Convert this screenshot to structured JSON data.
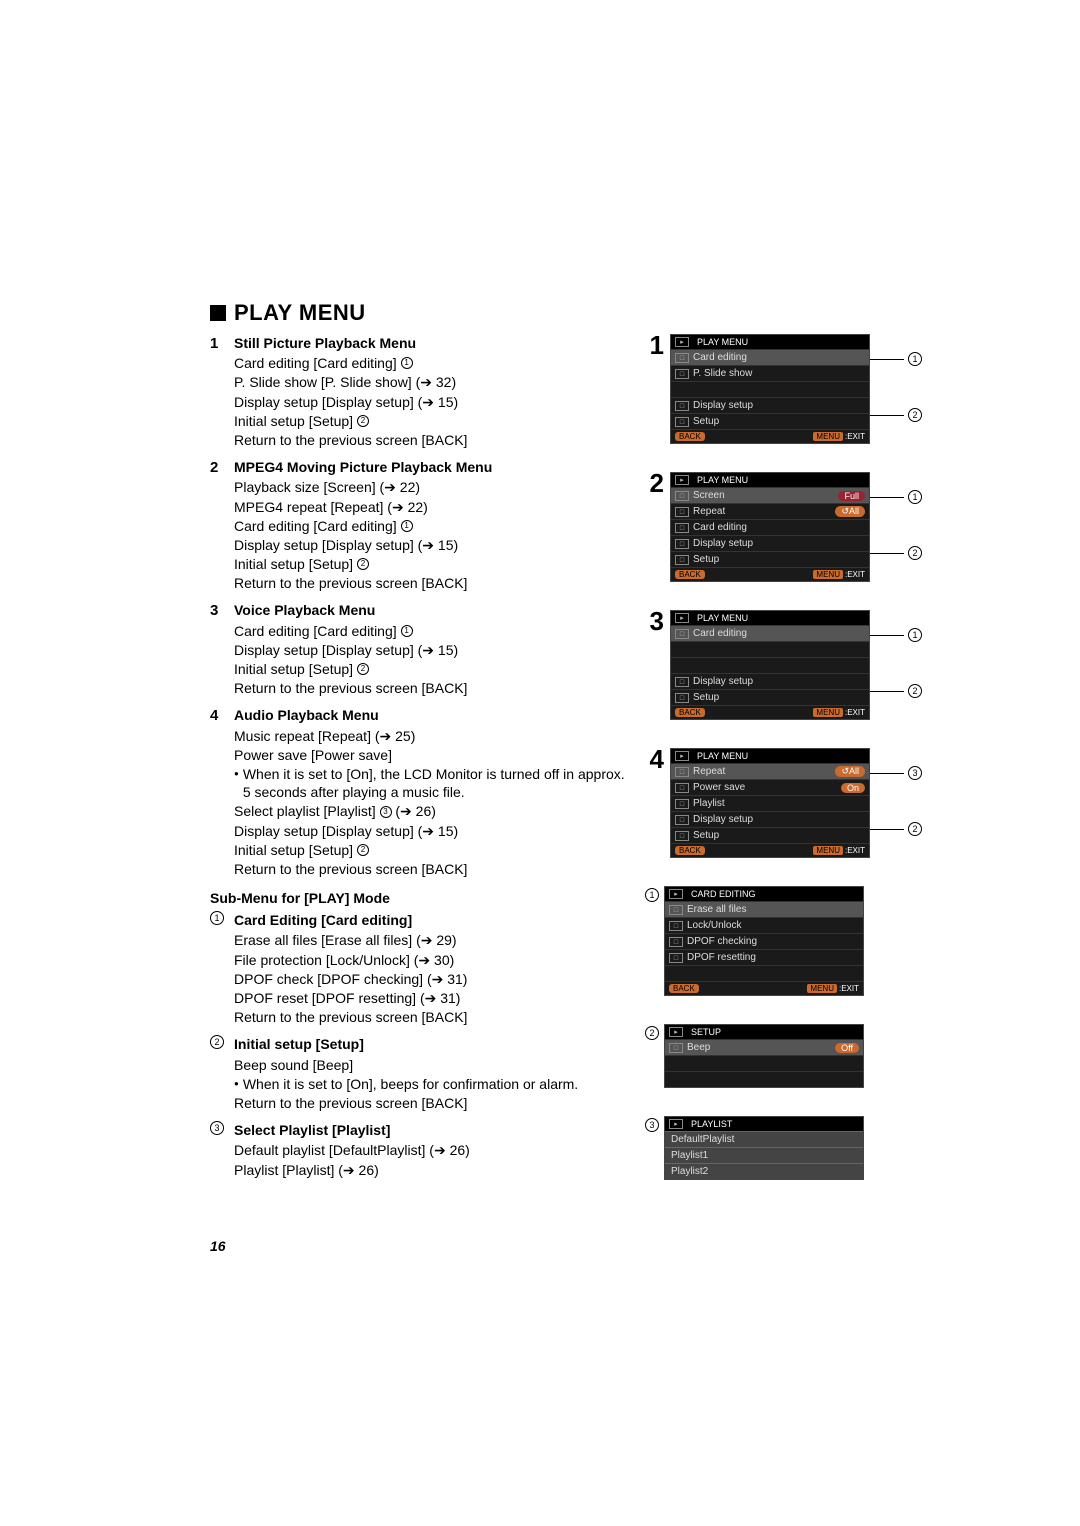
{
  "page_number": "16",
  "header": {
    "title": "PLAY MENU"
  },
  "left": {
    "sections": [
      {
        "num": "1",
        "title": "Still Picture Playback Menu",
        "lines": [
          {
            "text": "Card editing [Card editing] ",
            "circ": "1"
          },
          {
            "text": "P. Slide show [P. Slide show] (➔ 32)"
          },
          {
            "text": "Display setup [Display setup] (➔ 15)"
          },
          {
            "text": "Initial setup [Setup] ",
            "circ": "2"
          },
          {
            "text": "Return to the previous screen [BACK]"
          }
        ]
      },
      {
        "num": "2",
        "title": "MPEG4 Moving Picture Playback Menu",
        "lines": [
          {
            "text": "Playback size [Screen] (➔ 22)"
          },
          {
            "text": "MPEG4 repeat [Repeat] (➔ 22)"
          },
          {
            "text": "Card editing [Card editing] ",
            "circ": "1"
          },
          {
            "text": "Display setup [Display setup] (➔ 15)"
          },
          {
            "text": "Initial setup [Setup] ",
            "circ": "2"
          },
          {
            "text": "Return to the previous screen [BACK]"
          }
        ]
      },
      {
        "num": "3",
        "title": "Voice Playback Menu",
        "lines": [
          {
            "text": "Card editing [Card editing] ",
            "circ": "1"
          },
          {
            "text": "Display setup [Display setup] (➔ 15)"
          },
          {
            "text": "Initial setup [Setup] ",
            "circ": "2"
          },
          {
            "text": "Return to the previous screen [BACK]"
          }
        ]
      },
      {
        "num": "4",
        "title": "Audio Playback Menu",
        "lines": [
          {
            "text": "Music repeat [Repeat] (➔ 25)"
          },
          {
            "text": "Power save [Power save]"
          },
          {
            "bullet": true,
            "text": "When it is set to [On], the LCD Monitor is turned off in approx. 5 seconds after playing a music file."
          },
          {
            "text": "Select playlist [Playlist] ",
            "circ": "3",
            "suffix": " (➔ 26)"
          },
          {
            "text": "Display setup [Display setup] (➔ 15)"
          },
          {
            "text": "Initial setup [Setup] ",
            "circ": "2"
          },
          {
            "text": "Return to the previous screen [BACK]"
          }
        ]
      }
    ],
    "sub_header": "Sub-Menu for [PLAY] Mode",
    "subs": [
      {
        "circ": "1",
        "title": "Card Editing [Card editing]",
        "lines": [
          {
            "text": "Erase all files [Erase all files] (➔ 29)"
          },
          {
            "text": "File protection [Lock/Unlock] (➔ 30)"
          },
          {
            "text": "DPOF check [DPOF checking] (➔ 31)"
          },
          {
            "text": "DPOF reset [DPOF resetting] (➔ 31)"
          },
          {
            "text": "Return to the previous screen [BACK]"
          }
        ]
      },
      {
        "circ": "2",
        "title": "Initial setup [Setup]",
        "lines": [
          {
            "text": "Beep sound [Beep]"
          },
          {
            "bullet": true,
            "text": "When it is set to [On], beeps for confirmation or alarm."
          },
          {
            "text": "Return to the previous screen [BACK]"
          }
        ]
      },
      {
        "circ": "3",
        "title": "Select Playlist [Playlist]",
        "lines": [
          {
            "text": "Default playlist [DefaultPlaylist] (➔ 26)"
          },
          {
            "text": "Playlist [Playlist] (➔ 26)"
          }
        ]
      }
    ]
  },
  "menus": {
    "m1": {
      "header": "PLAY MENU",
      "rows": [
        {
          "label": "Card editing",
          "hl": true,
          "callout": "1"
        },
        {
          "label": "P. Slide show"
        },
        {
          "spacer": true
        },
        {
          "label": "Display setup"
        },
        {
          "label": "Setup",
          "callout": "2"
        }
      ],
      "back": "BACK",
      "exit_menu": "MENU",
      "exit_text": ":EXIT"
    },
    "m2": {
      "header": "PLAY MENU",
      "rows": [
        {
          "label": "Screen",
          "hl": true,
          "value": "Full",
          "value_style": "red"
        },
        {
          "label": "Repeat",
          "value": "↺All",
          "value_style": "orange"
        },
        {
          "label": "Card editing",
          "callout": "1"
        },
        {
          "label": "Display setup"
        },
        {
          "label": "Setup",
          "callout": "2"
        }
      ],
      "back": "BACK",
      "exit_menu": "MENU",
      "exit_text": ":EXIT"
    },
    "m3": {
      "header": "PLAY MENU",
      "rows": [
        {
          "label": "Card editing",
          "hl": true,
          "callout": "1"
        },
        {
          "spacer": true
        },
        {
          "spacer": true
        },
        {
          "label": "Display setup"
        },
        {
          "label": "Setup",
          "callout": "2"
        }
      ],
      "back": "BACK",
      "exit_menu": "MENU",
      "exit_text": ":EXIT"
    },
    "m4": {
      "header": "PLAY MENU",
      "rows": [
        {
          "label": "Repeat",
          "hl": true,
          "value": "↺All",
          "value_style": "orange"
        },
        {
          "label": "Power save",
          "value": "On",
          "value_style": "orange"
        },
        {
          "label": "Playlist",
          "callout": "3"
        },
        {
          "label": "Display setup"
        },
        {
          "label": "Setup",
          "callout": "2"
        }
      ],
      "back": "BACK",
      "exit_menu": "MENU",
      "exit_text": ":EXIT"
    },
    "card": {
      "circ": "1",
      "header": "CARD EDITING",
      "rows": [
        {
          "label": "Erase all files",
          "hl": true
        },
        {
          "label": "Lock/Unlock"
        },
        {
          "label": "DPOF checking"
        },
        {
          "label": "DPOF resetting"
        },
        {
          "spacer": true
        }
      ],
      "back": "BACK",
      "exit_menu": "MENU",
      "exit_text": ":EXIT"
    },
    "setup": {
      "circ": "2",
      "header": "SETUP",
      "rows": [
        {
          "label": "Beep",
          "hl": true,
          "value": "Off",
          "value_style": "orange"
        },
        {
          "spacer": true
        },
        {
          "spacer": true
        }
      ]
    },
    "playlist": {
      "circ": "3",
      "header": "PLAYLIST",
      "rows": [
        {
          "label": "DefaultPlaylist",
          "type": "pl"
        },
        {
          "label": "Playlist1",
          "type": "pl"
        },
        {
          "label": "Playlist2",
          "type": "pl"
        }
      ]
    }
  }
}
